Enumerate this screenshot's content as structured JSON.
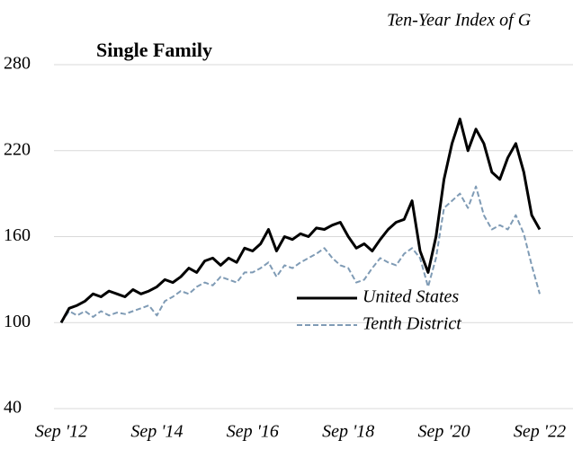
{
  "chart_data": {
    "type": "line",
    "title": "Ten-Year Index of G",
    "subtitle": "Single Family",
    "categories": [
      "Sep '12",
      null,
      null,
      null,
      null,
      null,
      null,
      null,
      null,
      null,
      null,
      null,
      "Sep '14",
      null,
      null,
      null,
      null,
      null,
      null,
      null,
      null,
      null,
      null,
      null,
      "Sep '16",
      null,
      null,
      null,
      null,
      null,
      null,
      null,
      null,
      null,
      null,
      null,
      "Sep '18",
      null,
      null,
      null,
      null,
      null,
      null,
      null,
      null,
      null,
      null,
      null,
      "Sep '20",
      null,
      null,
      null,
      null,
      null,
      null,
      null,
      null,
      null,
      null,
      null,
      "Sep '22"
    ],
    "series": [
      {
        "name": "United States",
        "color": "#000000",
        "dash": false,
        "values": [
          100,
          110,
          112,
          115,
          120,
          118,
          122,
          120,
          118,
          123,
          120,
          122,
          125,
          130,
          128,
          132,
          138,
          135,
          143,
          145,
          140,
          145,
          142,
          152,
          150,
          155,
          165,
          150,
          160,
          158,
          162,
          160,
          166,
          165,
          168,
          170,
          160,
          152,
          155,
          150,
          158,
          165,
          170,
          172,
          185,
          150,
          135,
          160,
          200,
          225,
          242,
          220,
          235,
          225,
          205,
          200,
          215,
          225,
          205,
          175,
          165
        ]
      },
      {
        "name": "Tenth District",
        "color": "#7f9bb5",
        "dash": true,
        "values": [
          100,
          108,
          105,
          108,
          104,
          108,
          105,
          107,
          106,
          108,
          110,
          112,
          105,
          115,
          118,
          122,
          120,
          125,
          128,
          126,
          132,
          130,
          128,
          135,
          135,
          138,
          142,
          132,
          140,
          138,
          142,
          145,
          148,
          152,
          145,
          140,
          138,
          128,
          130,
          138,
          145,
          142,
          140,
          148,
          152,
          145,
          125,
          145,
          180,
          185,
          190,
          180,
          195,
          175,
          165,
          168,
          165,
          175,
          162,
          140,
          120
        ]
      }
    ],
    "ylim": [
      40,
      280
    ],
    "yticks": [
      40,
      100,
      160,
      220,
      280
    ],
    "grid": true
  }
}
